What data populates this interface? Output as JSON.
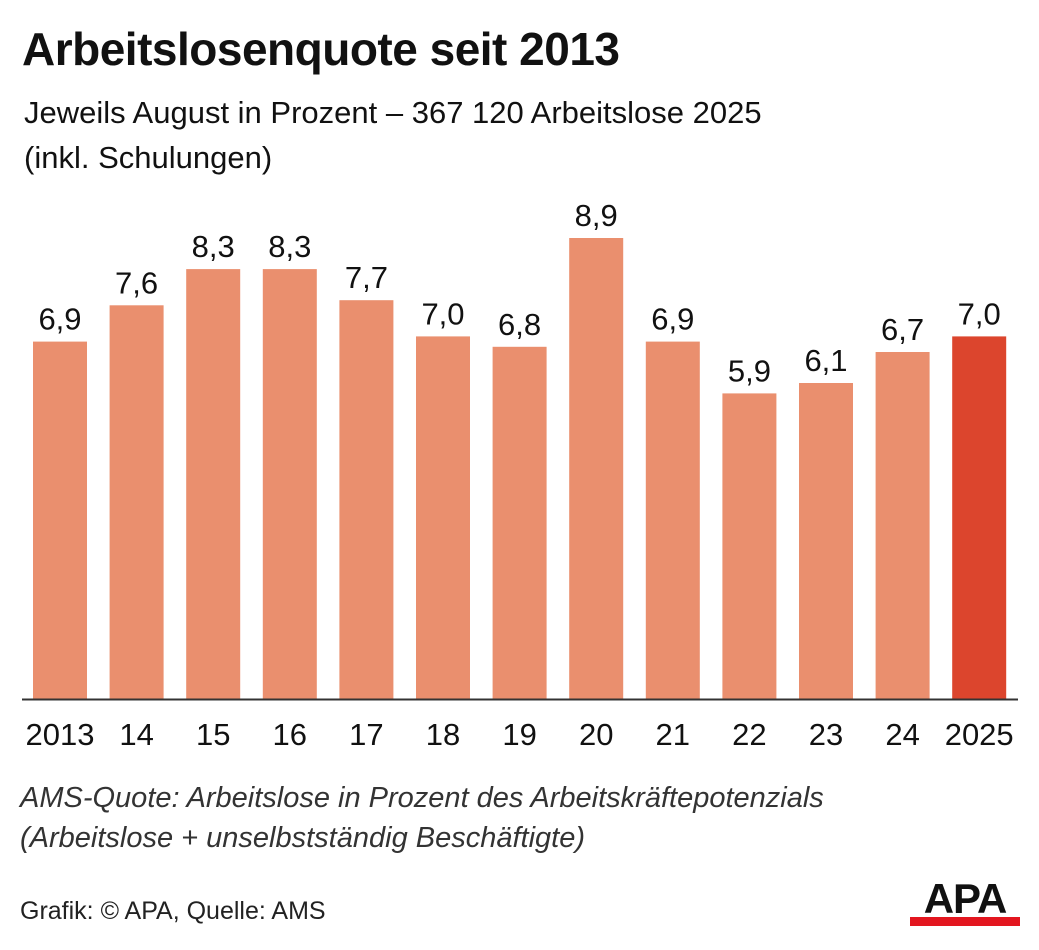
{
  "title": "Arbeitslosenquote seit 2013",
  "subtitle_line1": "Jeweils August in Prozent – 367 120 Arbeitslose 2025",
  "subtitle_line2": "(inkl. Schulungen)",
  "note_line1": "AMS-Quote: Arbeitslose in Prozent des Arbeitskräftepotenzials",
  "note_line2": "(Arbeitslose + unselbstständig Beschäftigte)",
  "credit": "Grafik: © APA, Quelle: AMS",
  "logo_text": "APA",
  "colors": {
    "bar": "#ea8f6e",
    "highlight": "#dc452d",
    "axis": "#333333",
    "logo_red": "#e3161f"
  },
  "chart_data": {
    "type": "bar",
    "categories": [
      "2013",
      "14",
      "15",
      "16",
      "17",
      "18",
      "19",
      "20",
      "21",
      "22",
      "23",
      "24",
      "2025"
    ],
    "values": [
      6.9,
      7.6,
      8.3,
      8.3,
      7.7,
      7.0,
      6.8,
      8.9,
      6.9,
      5.9,
      6.1,
      6.7,
      7.0
    ],
    "value_labels": [
      "6,9",
      "7,6",
      "8,3",
      "8,3",
      "7,7",
      "7,0",
      "6,8",
      "8,9",
      "6,9",
      "5,9",
      "6,1",
      "6,7",
      "7,0"
    ],
    "highlight_index": 12,
    "ylim": [
      0,
      8.9
    ],
    "grid": false,
    "xlabel": "",
    "ylabel": ""
  }
}
